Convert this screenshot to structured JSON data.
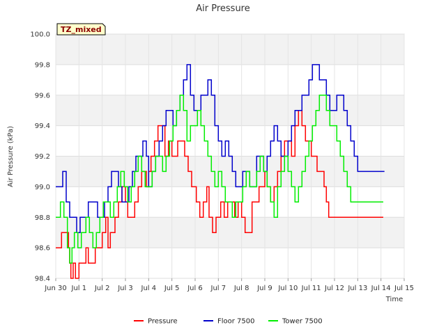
{
  "chart_data": {
    "type": "line",
    "title": "Air Pressure",
    "xlabel": "Time",
    "ylabel": "Air Pressure (kPa)",
    "badge": "TZ_mixed",
    "xlim": [
      0,
      15
    ],
    "ylim": [
      98.4,
      100.0
    ],
    "x_ticks": [
      0,
      1,
      2,
      3,
      4,
      5,
      6,
      7,
      8,
      9,
      10,
      11,
      12,
      13,
      14,
      15
    ],
    "x_tick_labels": [
      "Jun 30",
      "Jul 1",
      "Jul 2",
      "Jul 3",
      "Jul 4",
      "Jul 5",
      "Jul 6",
      "Jul 7",
      "Jul 8",
      "Jul 9",
      "Jul 10",
      "Jul 11",
      "Jul 12",
      "Jul 13",
      "Jul 14",
      "Jul 15"
    ],
    "y_ticks": [
      98.4,
      98.6,
      98.8,
      99.0,
      99.2,
      99.4,
      99.6,
      99.8,
      100.0
    ],
    "y_tick_labels": [
      "98.4",
      "98.6",
      "98.8",
      "99.0",
      "99.2",
      "99.4",
      "99.6",
      "99.8",
      "100.0"
    ],
    "legend_position": "bottom-center",
    "series": [
      {
        "name": "Pressure",
        "color": "#ff0000",
        "x": [
          0.0,
          0.25,
          0.5,
          0.55,
          0.6,
          0.65,
          0.7,
          0.75,
          0.85,
          1.0,
          1.05,
          1.1,
          1.2,
          1.3,
          1.4,
          1.55,
          1.7,
          1.85,
          2.0,
          2.15,
          2.25,
          2.35,
          2.45,
          2.55,
          2.7,
          2.85,
          3.0,
          3.1,
          3.25,
          3.4,
          3.55,
          3.7,
          3.8,
          3.9,
          4.0,
          4.1,
          4.25,
          4.4,
          4.55,
          4.7,
          4.85,
          5.0,
          5.1,
          5.25,
          5.4,
          5.55,
          5.7,
          5.85,
          5.95,
          6.05,
          6.2,
          6.35,
          6.5,
          6.6,
          6.75,
          6.9,
          7.0,
          7.1,
          7.25,
          7.4,
          7.55,
          7.7,
          7.85,
          8.0,
          8.15,
          8.3,
          8.45,
          8.6,
          8.75,
          8.9,
          9.0,
          9.1,
          9.25,
          9.4,
          9.55,
          9.7,
          9.85,
          10.0,
          10.15,
          10.3,
          10.45,
          10.6,
          10.75,
          10.85,
          11.0,
          11.1,
          11.25,
          11.4,
          11.55,
          11.65,
          11.75,
          11.9,
          12.0,
          12.1,
          12.25,
          12.4,
          12.55,
          12.65,
          12.75,
          12.9,
          13.0,
          13.15,
          13.3,
          13.45,
          13.6,
          13.75,
          13.85,
          13.95,
          14.1
        ],
        "y": [
          98.6,
          98.7,
          98.7,
          98.6,
          98.5,
          98.4,
          98.4,
          98.5,
          98.4,
          98.5,
          98.5,
          98.5,
          98.5,
          98.6,
          98.5,
          98.5,
          98.6,
          98.6,
          98.7,
          98.8,
          98.6,
          98.7,
          98.7,
          98.8,
          98.9,
          99.0,
          98.9,
          98.8,
          98.8,
          98.9,
          99.0,
          99.1,
          99.1,
          99.0,
          99.1,
          99.2,
          99.3,
          99.4,
          99.4,
          99.2,
          99.3,
          99.2,
          99.2,
          99.3,
          99.3,
          99.2,
          99.1,
          99.0,
          99.0,
          98.9,
          98.8,
          98.9,
          99.0,
          98.8,
          98.7,
          98.8,
          98.8,
          98.9,
          98.8,
          98.9,
          98.9,
          98.8,
          98.9,
          98.8,
          98.7,
          98.7,
          98.9,
          98.9,
          99.0,
          99.0,
          99.1,
          99.0,
          98.9,
          99.0,
          99.1,
          99.2,
          99.3,
          99.3,
          99.2,
          99.4,
          99.5,
          99.4,
          99.3,
          99.3,
          99.2,
          99.2,
          99.1,
          99.1,
          99.0,
          98.9,
          98.8,
          98.8,
          98.8,
          98.8,
          98.8,
          98.8,
          98.8,
          98.8,
          98.8,
          98.8,
          98.8,
          98.8,
          98.8,
          98.8,
          98.8,
          98.8,
          98.8,
          98.8,
          98.8
        ]
      },
      {
        "name": "Floor 7500",
        "color": "#0000cc",
        "x": [
          0.0,
          0.3,
          0.45,
          0.6,
          0.75,
          0.9,
          1.05,
          1.2,
          1.4,
          1.6,
          1.8,
          2.0,
          2.1,
          2.25,
          2.4,
          2.55,
          2.7,
          2.85,
          3.0,
          3.15,
          3.3,
          3.45,
          3.6,
          3.75,
          3.9,
          4.0,
          4.15,
          4.3,
          4.45,
          4.6,
          4.75,
          4.9,
          5.05,
          5.2,
          5.35,
          5.5,
          5.65,
          5.8,
          5.95,
          6.1,
          6.25,
          6.4,
          6.55,
          6.7,
          6.85,
          7.0,
          7.15,
          7.3,
          7.45,
          7.6,
          7.75,
          7.9,
          8.05,
          8.2,
          8.35,
          8.5,
          8.65,
          8.8,
          8.95,
          9.1,
          9.25,
          9.4,
          9.55,
          9.7,
          9.85,
          10.0,
          10.15,
          10.3,
          10.45,
          10.6,
          10.75,
          10.9,
          11.05,
          11.2,
          11.35,
          11.5,
          11.65,
          11.8,
          11.95,
          12.1,
          12.25,
          12.4,
          12.55,
          12.7,
          12.85,
          13.0,
          13.15,
          13.3,
          13.45,
          13.6,
          13.75,
          13.9,
          14.05,
          14.15
        ],
        "y": [
          99.0,
          99.1,
          98.9,
          98.8,
          98.8,
          98.7,
          98.8,
          98.8,
          98.9,
          98.9,
          98.8,
          98.8,
          98.9,
          99.0,
          99.1,
          99.1,
          99.0,
          98.9,
          98.9,
          99.0,
          99.1,
          99.2,
          99.2,
          99.3,
          99.2,
          99.0,
          99.1,
          99.2,
          99.3,
          99.4,
          99.5,
          99.5,
          99.4,
          99.5,
          99.6,
          99.7,
          99.8,
          99.6,
          99.5,
          99.5,
          99.6,
          99.6,
          99.7,
          99.6,
          99.4,
          99.3,
          99.2,
          99.3,
          99.2,
          99.1,
          99.0,
          99.0,
          99.1,
          99.1,
          99.0,
          99.0,
          99.2,
          99.2,
          99.1,
          99.2,
          99.3,
          99.4,
          99.3,
          99.2,
          99.2,
          99.3,
          99.4,
          99.5,
          99.5,
          99.6,
          99.6,
          99.7,
          99.8,
          99.8,
          99.7,
          99.7,
          99.6,
          99.5,
          99.5,
          99.6,
          99.6,
          99.5,
          99.4,
          99.3,
          99.2,
          99.1,
          99.1,
          99.1,
          99.1,
          99.1,
          99.1,
          99.1,
          99.1,
          99.1
        ]
      },
      {
        "name": "Tower 7500",
        "color": "#00ee00",
        "x": [
          0.0,
          0.2,
          0.35,
          0.5,
          0.6,
          0.7,
          0.8,
          0.95,
          1.1,
          1.3,
          1.45,
          1.6,
          1.75,
          1.9,
          2.05,
          2.2,
          2.35,
          2.5,
          2.65,
          2.8,
          2.95,
          3.1,
          3.25,
          3.4,
          3.55,
          3.7,
          3.85,
          4.0,
          4.15,
          4.3,
          4.45,
          4.6,
          4.75,
          4.9,
          5.05,
          5.2,
          5.35,
          5.5,
          5.65,
          5.8,
          5.95,
          6.1,
          6.25,
          6.4,
          6.55,
          6.7,
          6.85,
          7.0,
          7.15,
          7.3,
          7.45,
          7.6,
          7.75,
          7.9,
          8.05,
          8.2,
          8.35,
          8.5,
          8.65,
          8.8,
          8.95,
          9.1,
          9.25,
          9.4,
          9.55,
          9.7,
          9.85,
          10.0,
          10.15,
          10.3,
          10.45,
          10.6,
          10.75,
          10.9,
          11.05,
          11.2,
          11.35,
          11.5,
          11.65,
          11.8,
          11.95,
          12.1,
          12.25,
          12.4,
          12.55,
          12.7,
          12.85,
          13.0,
          13.15,
          13.3,
          13.45,
          13.6,
          13.75,
          13.9,
          14.0,
          14.1
        ],
        "y": [
          98.8,
          98.9,
          98.8,
          98.6,
          98.5,
          98.6,
          98.7,
          98.6,
          98.7,
          98.8,
          98.7,
          98.6,
          98.7,
          98.8,
          98.9,
          98.9,
          98.8,
          98.9,
          99.0,
          99.1,
          99.0,
          98.9,
          99.0,
          99.1,
          99.2,
          99.1,
          99.0,
          99.0,
          99.1,
          99.2,
          99.2,
          99.1,
          99.2,
          99.3,
          99.4,
          99.5,
          99.6,
          99.5,
          99.3,
          99.4,
          99.4,
          99.5,
          99.4,
          99.3,
          99.2,
          99.1,
          99.0,
          99.1,
          99.0,
          98.9,
          98.9,
          98.8,
          98.9,
          98.9,
          99.0,
          99.1,
          99.0,
          99.0,
          99.1,
          99.2,
          99.1,
          99.0,
          98.9,
          98.8,
          99.0,
          99.1,
          99.2,
          99.1,
          99.0,
          98.9,
          99.0,
          99.1,
          99.2,
          99.3,
          99.4,
          99.5,
          99.6,
          99.6,
          99.5,
          99.4,
          99.4,
          99.3,
          99.2,
          99.1,
          99.0,
          98.9,
          98.9,
          98.9,
          98.9,
          98.9,
          98.9,
          98.9,
          98.9,
          98.9,
          98.9,
          98.9
        ]
      }
    ]
  }
}
